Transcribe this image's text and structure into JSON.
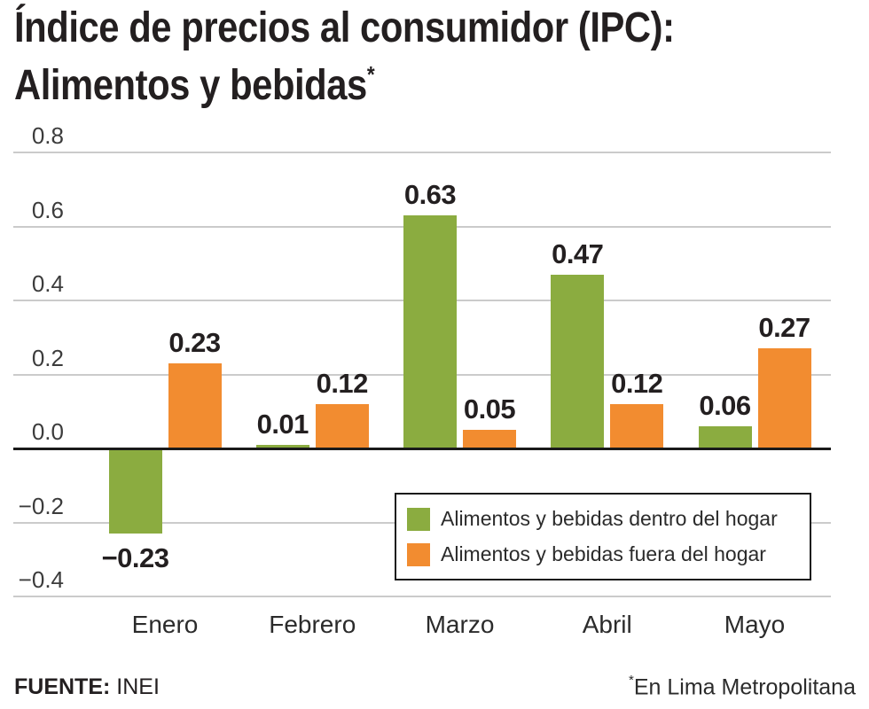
{
  "title": {
    "line1": "Índice de precios al consumidor (IPC):",
    "line2": "Alimentos y bebidas",
    "footnote_marker": "*"
  },
  "chart_data": {
    "type": "bar",
    "categories": [
      "Enero",
      "Febrero",
      "Marzo",
      "Abril",
      "Mayo"
    ],
    "series": [
      {
        "name": "Alimentos y bebidas dentro del hogar",
        "color": "#8BAC40",
        "values": [
          -0.23,
          0.01,
          0.63,
          0.47,
          0.06
        ]
      },
      {
        "name": "Alimentos y bebidas fuera del hogar",
        "color": "#F28C30",
        "values": [
          0.23,
          0.12,
          0.05,
          0.12,
          0.27
        ]
      }
    ],
    "yticks": [
      0.8,
      0.6,
      0.4,
      0.2,
      0.0,
      -0.2,
      -0.4
    ],
    "ylim": [
      -0.4,
      0.8
    ],
    "grid": true,
    "value_labels": true,
    "legend_position": "inside-bottom-right",
    "gridline_color": "#cbcbcb",
    "zero_line_color": "#1a1a1a"
  },
  "footer": {
    "source_label": "FUENTE:",
    "source_value": " INEI",
    "note_marker": "*",
    "note": "En Lima Metropolitana"
  }
}
